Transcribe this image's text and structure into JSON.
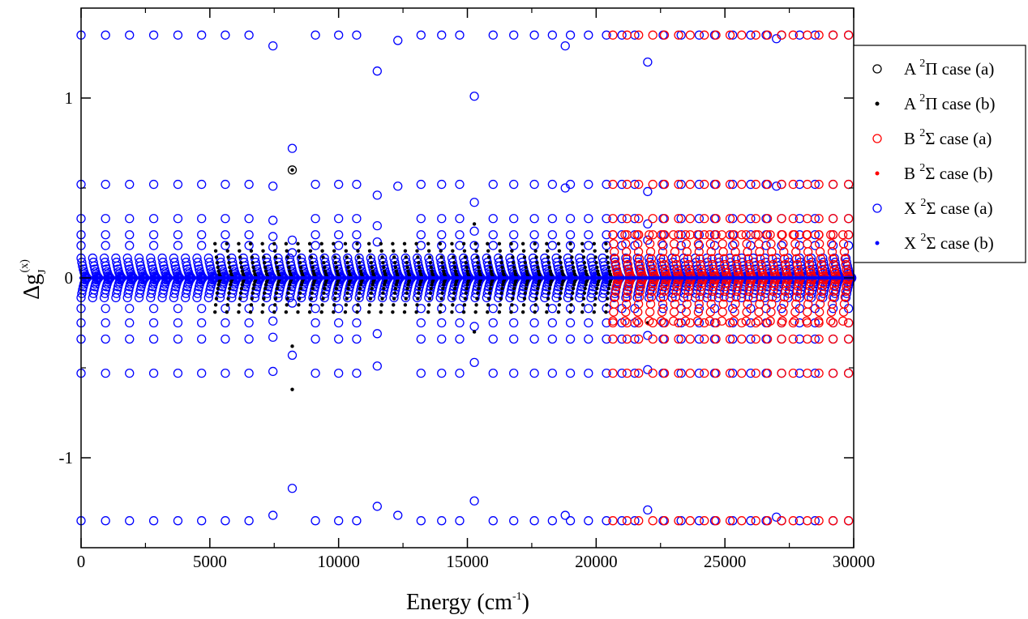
{
  "chart_data": {
    "type": "scatter",
    "title": "",
    "xlabel": {
      "base": "Energy (cm",
      "sup": "-1",
      "end": ")"
    },
    "ylabel": {
      "base": "Δg",
      "sub": "J",
      "sup": "(x)"
    },
    "xlim": [
      0,
      30000
    ],
    "ylim": [
      -1.5,
      1.5
    ],
    "x_ticks": [
      0,
      5000,
      10000,
      15000,
      20000,
      25000,
      30000
    ],
    "x_tick_labels": [
      "0",
      "5000",
      "10000",
      "15000",
      "20000",
      "25000",
      "30000"
    ],
    "y_ticks": [
      -1,
      0,
      1
    ],
    "y_tick_labels": [
      "-1",
      "0",
      "1"
    ],
    "grid": false,
    "legend_position": "right",
    "series": [
      {
        "name": "A ²Π case (a)",
        "label": {
          "pre": "A ",
          "sup": "2",
          "post": "Π case (a)"
        },
        "color": "#000000",
        "marker": "open-circle",
        "x": [
          8200
        ],
        "y": [
          0.6
        ]
      },
      {
        "name": "A ²Π case (b)",
        "label": {
          "pre": "A ",
          "sup": "2",
          "post": "Π case (b)"
        },
        "color": "#000000",
        "marker": "dot",
        "band_start": 5200,
        "band_end": 20600,
        "band_step": 460,
        "band_amplitude": 0.19,
        "x": [
          8200,
          8200,
          8200,
          15270,
          15270,
          22000
        ],
        "y": [
          0.6,
          -0.38,
          -0.62,
          0.3,
          -0.3,
          -0.25
        ]
      },
      {
        "name": "B ²Σ case (a)",
        "label": {
          "pre": "B ",
          "sup": "2",
          "post": "Σ case (a)"
        },
        "color": "#ff0000",
        "marker": "open-circle",
        "band_start": 20650,
        "band_end": 29950,
        "band_step": 470,
        "band_amplitude": 0.24,
        "x": [
          20650,
          21200,
          21650,
          22200,
          22650,
          23200,
          23650,
          24200,
          24650,
          25200,
          25650,
          26200,
          26650,
          27200,
          27650,
          28200,
          28650,
          29200,
          29800
        ],
        "y": [
          1.35,
          1.35,
          1.35,
          1.35,
          1.35,
          1.35,
          1.35,
          1.35,
          1.35,
          1.35,
          1.35,
          1.35,
          1.35,
          1.35,
          1.35,
          1.35,
          1.35,
          1.35,
          1.35
        ]
      },
      {
        "name": "B ²Σ case (b)",
        "label": {
          "pre": "B ",
          "sup": "2",
          "post": "Σ case (b)"
        },
        "color": "#ff0000",
        "marker": "dot",
        "x": [],
        "y": []
      },
      {
        "name": "X ²Σ case (a)",
        "label": {
          "pre": "X ",
          "sup": "2",
          "post": "Σ case (a)"
        },
        "color": "#0000ff",
        "marker": "open-circle",
        "band_start": 0,
        "band_end": 30000,
        "band_step": 450,
        "band_amplitude": 0.11,
        "columns_x": [
          0,
          950,
          1880,
          2820,
          3760,
          4680,
          5600,
          6520,
          7450,
          8200,
          9100,
          10000,
          10700,
          11500,
          12300,
          13200,
          14000,
          14700,
          15270,
          16000,
          16800,
          17600,
          18300,
          19000,
          19700,
          20400,
          21000,
          21500,
          22000,
          22600,
          23300,
          24000,
          24600,
          25300,
          26000,
          26600,
          27200,
          27900,
          28500,
          29200,
          29800
        ],
        "rung_levels": [
          1.35,
          0.52,
          0.33,
          0.24,
          0.18,
          -0.17,
          -0.25,
          -0.34,
          -0.53,
          -1.35
        ],
        "dips": [
          {
            "x": 7450,
            "values": [
              1.29,
              0.51,
              0.32,
              0.23,
              0.17,
              -0.17,
              -0.24,
              -0.33,
              -0.52,
              -1.32
            ]
          },
          {
            "x": 8200,
            "values": [
              0.72,
              0.21,
              0.14,
              -0.14,
              -0.43,
              -1.17
            ]
          },
          {
            "x": 11500,
            "values": [
              1.15,
              0.46,
              0.29,
              0.2,
              -0.31,
              -0.49,
              -1.27
            ]
          },
          {
            "x": 12300,
            "values": [
              1.32,
              0.51,
              -1.32
            ]
          },
          {
            "x": 15270,
            "values": [
              1.01,
              0.42,
              0.26,
              0.18,
              -0.27,
              -0.47,
              -1.24
            ]
          },
          {
            "x": 18800,
            "values": [
              1.29,
              0.5,
              -1.32
            ]
          },
          {
            "x": 22000,
            "values": [
              1.2,
              0.48,
              0.3,
              0.21,
              -0.32,
              -0.51,
              -1.29
            ]
          },
          {
            "x": 27000,
            "values": [
              1.33,
              0.51,
              -1.33
            ]
          }
        ]
      },
      {
        "name": "X ²Σ case (b)",
        "label": {
          "pre": "X ",
          "sup": "2",
          "post": "Σ case (b)"
        },
        "color": "#0000ff",
        "marker": "dot",
        "x": [],
        "y": []
      }
    ]
  }
}
